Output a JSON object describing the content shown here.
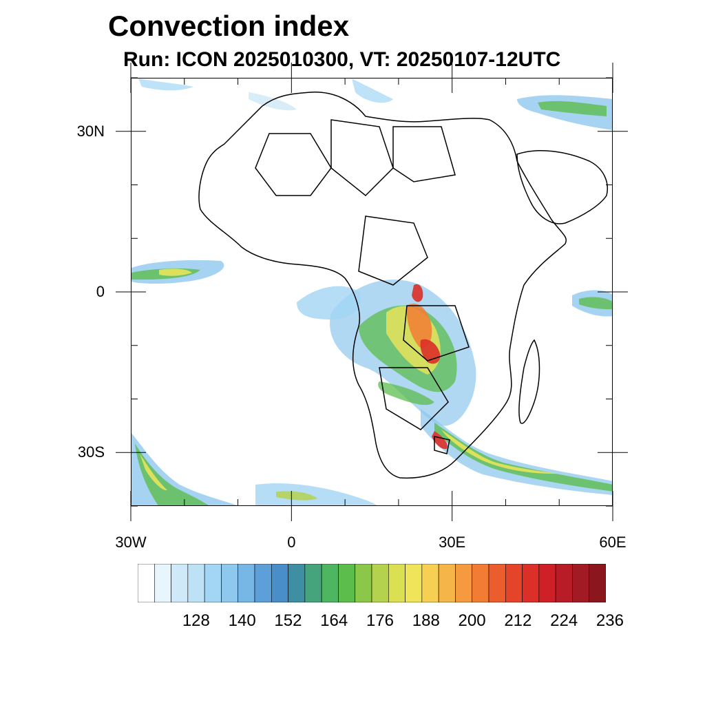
{
  "title": "Convection index",
  "subtitle": "Run: ICON 2025010300,  VT: 20250107-12UTC",
  "map": {
    "lon_range": [
      -30,
      60
    ],
    "lat_range": [
      -40,
      40
    ],
    "lat_labels": [
      {
        "value": 30,
        "text": "30N"
      },
      {
        "value": 0,
        "text": "0"
      },
      {
        "value": -30,
        "text": "30S"
      }
    ],
    "lon_labels": [
      {
        "value": -30,
        "text": "30W"
      },
      {
        "value": 0,
        "text": "0"
      },
      {
        "value": 30,
        "text": "30E"
      },
      {
        "value": 60,
        "text": "60E"
      }
    ]
  },
  "colorbar": {
    "colors": [
      "#ffffff",
      "#e8f5fc",
      "#cfe9f8",
      "#bde2f6",
      "#a3d6f4",
      "#8ec8ee",
      "#77b7e6",
      "#5d9fd8",
      "#4a8ec9",
      "#3f8fa3",
      "#46a47d",
      "#4eb561",
      "#5cbd4d",
      "#8bc84a",
      "#b5d24e",
      "#dbe053",
      "#f0e55a",
      "#f7cf52",
      "#f6b549",
      "#f59a3e",
      "#f27c34",
      "#ec5d2e",
      "#e44429",
      "#dc2f28",
      "#cf2028",
      "#b81c26",
      "#a21a23",
      "#8c161d"
    ],
    "labels": [
      {
        "value": 128,
        "text": "128"
      },
      {
        "value": 140,
        "text": "140"
      },
      {
        "value": 152,
        "text": "152"
      },
      {
        "value": 164,
        "text": "164"
      },
      {
        "value": 176,
        "text": "176"
      },
      {
        "value": 188,
        "text": "188"
      },
      {
        "value": 200,
        "text": "200"
      },
      {
        "value": 212,
        "text": "212"
      },
      {
        "value": 224,
        "text": "224"
      },
      {
        "value": 236,
        "text": "236"
      }
    ]
  }
}
